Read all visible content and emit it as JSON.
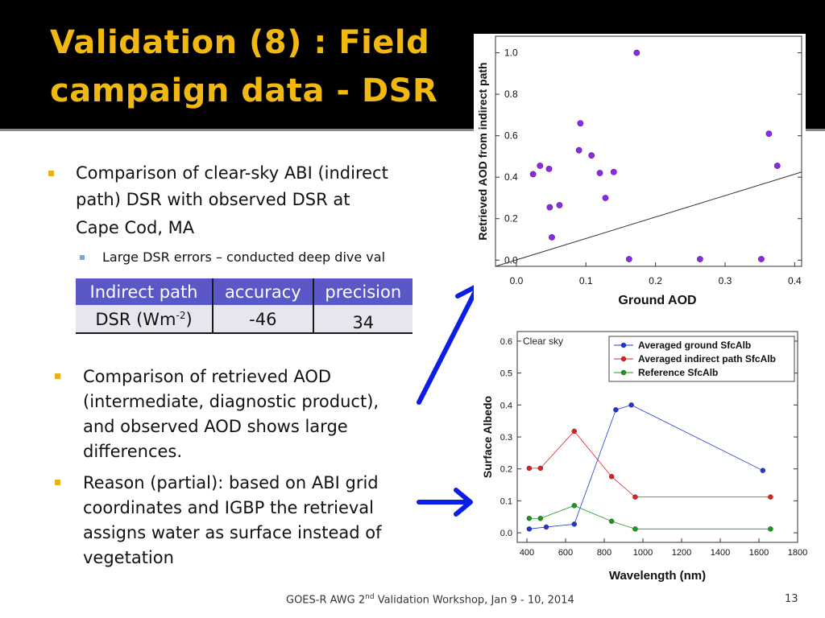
{
  "slide": {
    "title_line1": "Validation (8) : Field",
    "title_line2": "campaign data - DSR",
    "bullet1_lines": [
      "Comparison of clear-sky ABI (indirect",
      "path) DSR with observed DSR at",
      "Cape Cod, MA"
    ],
    "sub_bullet": "Large DSR errors – conducted deep dive val",
    "table": {
      "headers": [
        "Indirect path",
        "accuracy",
        "precision"
      ],
      "row_label": "DSR  (Wm",
      "row_label_sup": "-2",
      "row_label_end": ")",
      "accuracy": "-46",
      "precision": "34"
    },
    "bullet2_lines": [
      "Comparison of  retrieved AOD",
      "(intermediate, diagnostic product),",
      "and observed AOD shows large",
      "differences."
    ],
    "bullet3_lines": [
      "Reason (partial): based on ABI grid",
      "coordinates and IGBP the retrieval",
      "assigns water as surface instead of",
      "vegetation"
    ],
    "footer_pre": "GOES-R AWG 2",
    "footer_sup": "nd",
    "footer_post": " Validation Workshop, Jan 9 - 10, 2014",
    "page_number": "13"
  },
  "colors": {
    "title": "#f0b810",
    "table_header": "#5a57c8",
    "arrow": "#0a1ee6",
    "scatter_points": "#8a2be2",
    "series_ground": "#2233dd",
    "series_indirect": "#e02020",
    "series_reference": "#1a9a1a"
  },
  "chart_data": [
    {
      "type": "scatter",
      "title": "",
      "xlabel": "Ground AOD",
      "ylabel": "Retrieved  AOD from indirect path",
      "xlim": [
        -0.03,
        0.41
      ],
      "ylim": [
        -0.03,
        1.08
      ],
      "xticks": [
        "0.0",
        "0.1",
        "0.2",
        "0.3",
        "0.4"
      ],
      "yticks": [
        "0.0",
        "0.2",
        "0.4",
        "0.6",
        "0.8",
        "1.0"
      ],
      "points": [
        {
          "x": 0.024,
          "y": 0.415
        },
        {
          "x": 0.034,
          "y": 0.455
        },
        {
          "x": 0.047,
          "y": 0.44
        },
        {
          "x": 0.048,
          "y": 0.255
        },
        {
          "x": 0.051,
          "y": 0.11
        },
        {
          "x": 0.062,
          "y": 0.265
        },
        {
          "x": 0.09,
          "y": 0.53
        },
        {
          "x": 0.092,
          "y": 0.66
        },
        {
          "x": 0.108,
          "y": 0.505
        },
        {
          "x": 0.12,
          "y": 0.42
        },
        {
          "x": 0.128,
          "y": 0.3
        },
        {
          "x": 0.14,
          "y": 0.425
        },
        {
          "x": 0.162,
          "y": 0.005
        },
        {
          "x": 0.173,
          "y": 1.0
        },
        {
          "x": 0.264,
          "y": 0.005
        },
        {
          "x": 0.352,
          "y": 0.005
        },
        {
          "x": 0.363,
          "y": 0.61
        },
        {
          "x": 0.375,
          "y": 0.455
        }
      ],
      "reference_line": {
        "x": [
          -0.03,
          0.41
        ],
        "y": [
          -0.03,
          0.425
        ]
      }
    },
    {
      "type": "line",
      "title": "",
      "annotation": "Clear sky",
      "xlabel": "Wavelength (nm)",
      "ylabel": "Surface Albedo",
      "xlim": [
        350,
        1800
      ],
      "ylim": [
        -0.03,
        0.63
      ],
      "xticks": [
        "400",
        "600",
        "800",
        "1000",
        "1200",
        "1400",
        "1600",
        "1800"
      ],
      "yticks": [
        "0.0",
        "0.1",
        "0.2",
        "0.3",
        "0.4",
        "0.5",
        "0.6"
      ],
      "legend_position": "top-right",
      "series": [
        {
          "name": "Averaged ground SfcAlb",
          "x": [
            412,
            500,
            645,
            860,
            940,
            1620
          ],
          "values": [
            0.012,
            0.018,
            0.027,
            0.385,
            0.4,
            0.195
          ]
        },
        {
          "name": "Averaged indirect path SfcAlb",
          "x": [
            412,
            470,
            645,
            838,
            960,
            1660
          ],
          "values": [
            0.202,
            0.202,
            0.318,
            0.176,
            0.112,
            0.112
          ]
        },
        {
          "name": "Reference SfcAlb",
          "x": [
            412,
            470,
            645,
            838,
            960,
            1660
          ],
          "values": [
            0.045,
            0.045,
            0.085,
            0.036,
            0.012,
            0.012
          ]
        }
      ]
    }
  ]
}
